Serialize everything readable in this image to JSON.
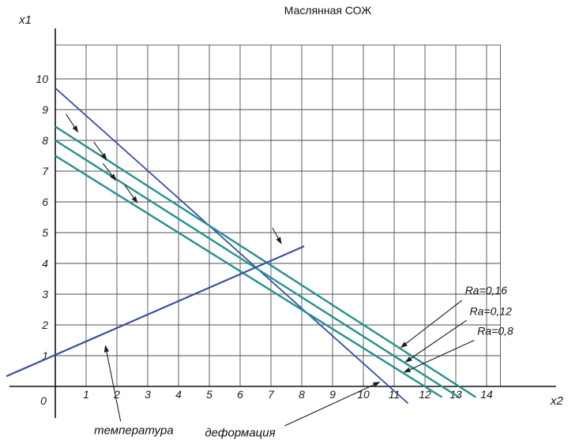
{
  "title": "Маслянная СОЖ",
  "axes": {
    "x_label": "x2",
    "y_label": "x1",
    "origin_label": "0",
    "x_ticks": [
      "1",
      "2",
      "3",
      "4",
      "5",
      "6",
      "7",
      "8",
      "9",
      "10",
      "11",
      "12",
      "13",
      "14"
    ],
    "y_ticks": [
      "1",
      "2",
      "3",
      "4",
      "5",
      "6",
      "7",
      "8",
      "9",
      "10"
    ]
  },
  "colors": {
    "blue": "#3a4f9e",
    "teal": "#27908f",
    "grid": "#4f4f4f",
    "axis": "#111111",
    "annotation": "#1c1c1c"
  },
  "chart_data": {
    "type": "line",
    "title": "Маслянная СОЖ",
    "xlabel": "x2",
    "ylabel": "x1",
    "xlim": [
      0,
      14.45
    ],
    "ylim": [
      0,
      11.1
    ],
    "grid": true,
    "legend": "none",
    "series": [
      {
        "id": "deformation-line",
        "name": "деформация",
        "color_key": "blue",
        "width": 1.8,
        "points": [
          [
            0,
            9.7
          ],
          [
            11.45,
            -0.55
          ]
        ]
      },
      {
        "id": "ra-016-line",
        "name": "Ra=0,16",
        "color_key": "teal",
        "width": 2.4,
        "points": [
          [
            0,
            8.45
          ],
          [
            13.65,
            -0.35
          ]
        ]
      },
      {
        "id": "ra-012-line",
        "name": "Ra=0,12",
        "color_key": "teal",
        "width": 2.4,
        "points": [
          [
            0,
            8.0
          ],
          [
            13.1,
            -0.35
          ]
        ]
      },
      {
        "id": "ra-08-line",
        "name": "Ra=0,8",
        "color_key": "teal",
        "width": 2.4,
        "points": [
          [
            0,
            7.5
          ],
          [
            12.55,
            -0.35
          ]
        ]
      },
      {
        "id": "temperature-line",
        "name": "температура",
        "color_key": "blue",
        "width": 2.2,
        "points": [
          [
            -1.59,
            0.33
          ],
          [
            8.08,
            4.56
          ]
        ]
      }
    ],
    "annotations": {
      "line_labels": [
        {
          "text": "Ra=0,16",
          "text_pos": [
            13.3,
            3.0
          ],
          "arrow_from": [
            13.2,
            2.8
          ],
          "arrow_to": [
            11.2,
            1.25
          ]
        },
        {
          "text": "Ra=0,12",
          "text_pos": [
            13.45,
            2.32
          ],
          "arrow_from": [
            13.35,
            2.15
          ],
          "arrow_to": [
            11.35,
            0.78
          ]
        },
        {
          "text": "Ra=0,8",
          "text_pos": [
            13.7,
            1.68
          ],
          "arrow_from": [
            13.6,
            1.5
          ],
          "arrow_to": [
            11.3,
            0.45
          ]
        }
      ],
      "bottom_labels": [
        {
          "text": "температура",
          "text_pos": [
            2.55,
            -1.42
          ],
          "arrow_from": [
            2.12,
            -1.13
          ],
          "arrow_to": [
            1.62,
            1.35
          ]
        },
        {
          "text": "деформация",
          "text_pos": [
            6.0,
            -1.5
          ],
          "arrow_from": [
            7.45,
            -1.28
          ],
          "arrow_to": [
            10.55,
            0.15
          ]
        }
      ],
      "small_arrows": [
        {
          "from": [
            0.35,
            8.85
          ],
          "to": [
            0.75,
            8.25
          ]
        },
        {
          "from": [
            1.25,
            7.95
          ],
          "to": [
            1.68,
            7.35
          ]
        },
        {
          "from": [
            1.55,
            7.25
          ],
          "to": [
            1.98,
            6.68
          ]
        },
        {
          "from": [
            2.25,
            6.55
          ],
          "to": [
            2.68,
            5.95
          ]
        },
        {
          "from": [
            7.05,
            5.15
          ],
          "to": [
            7.35,
            4.62
          ]
        }
      ]
    }
  }
}
